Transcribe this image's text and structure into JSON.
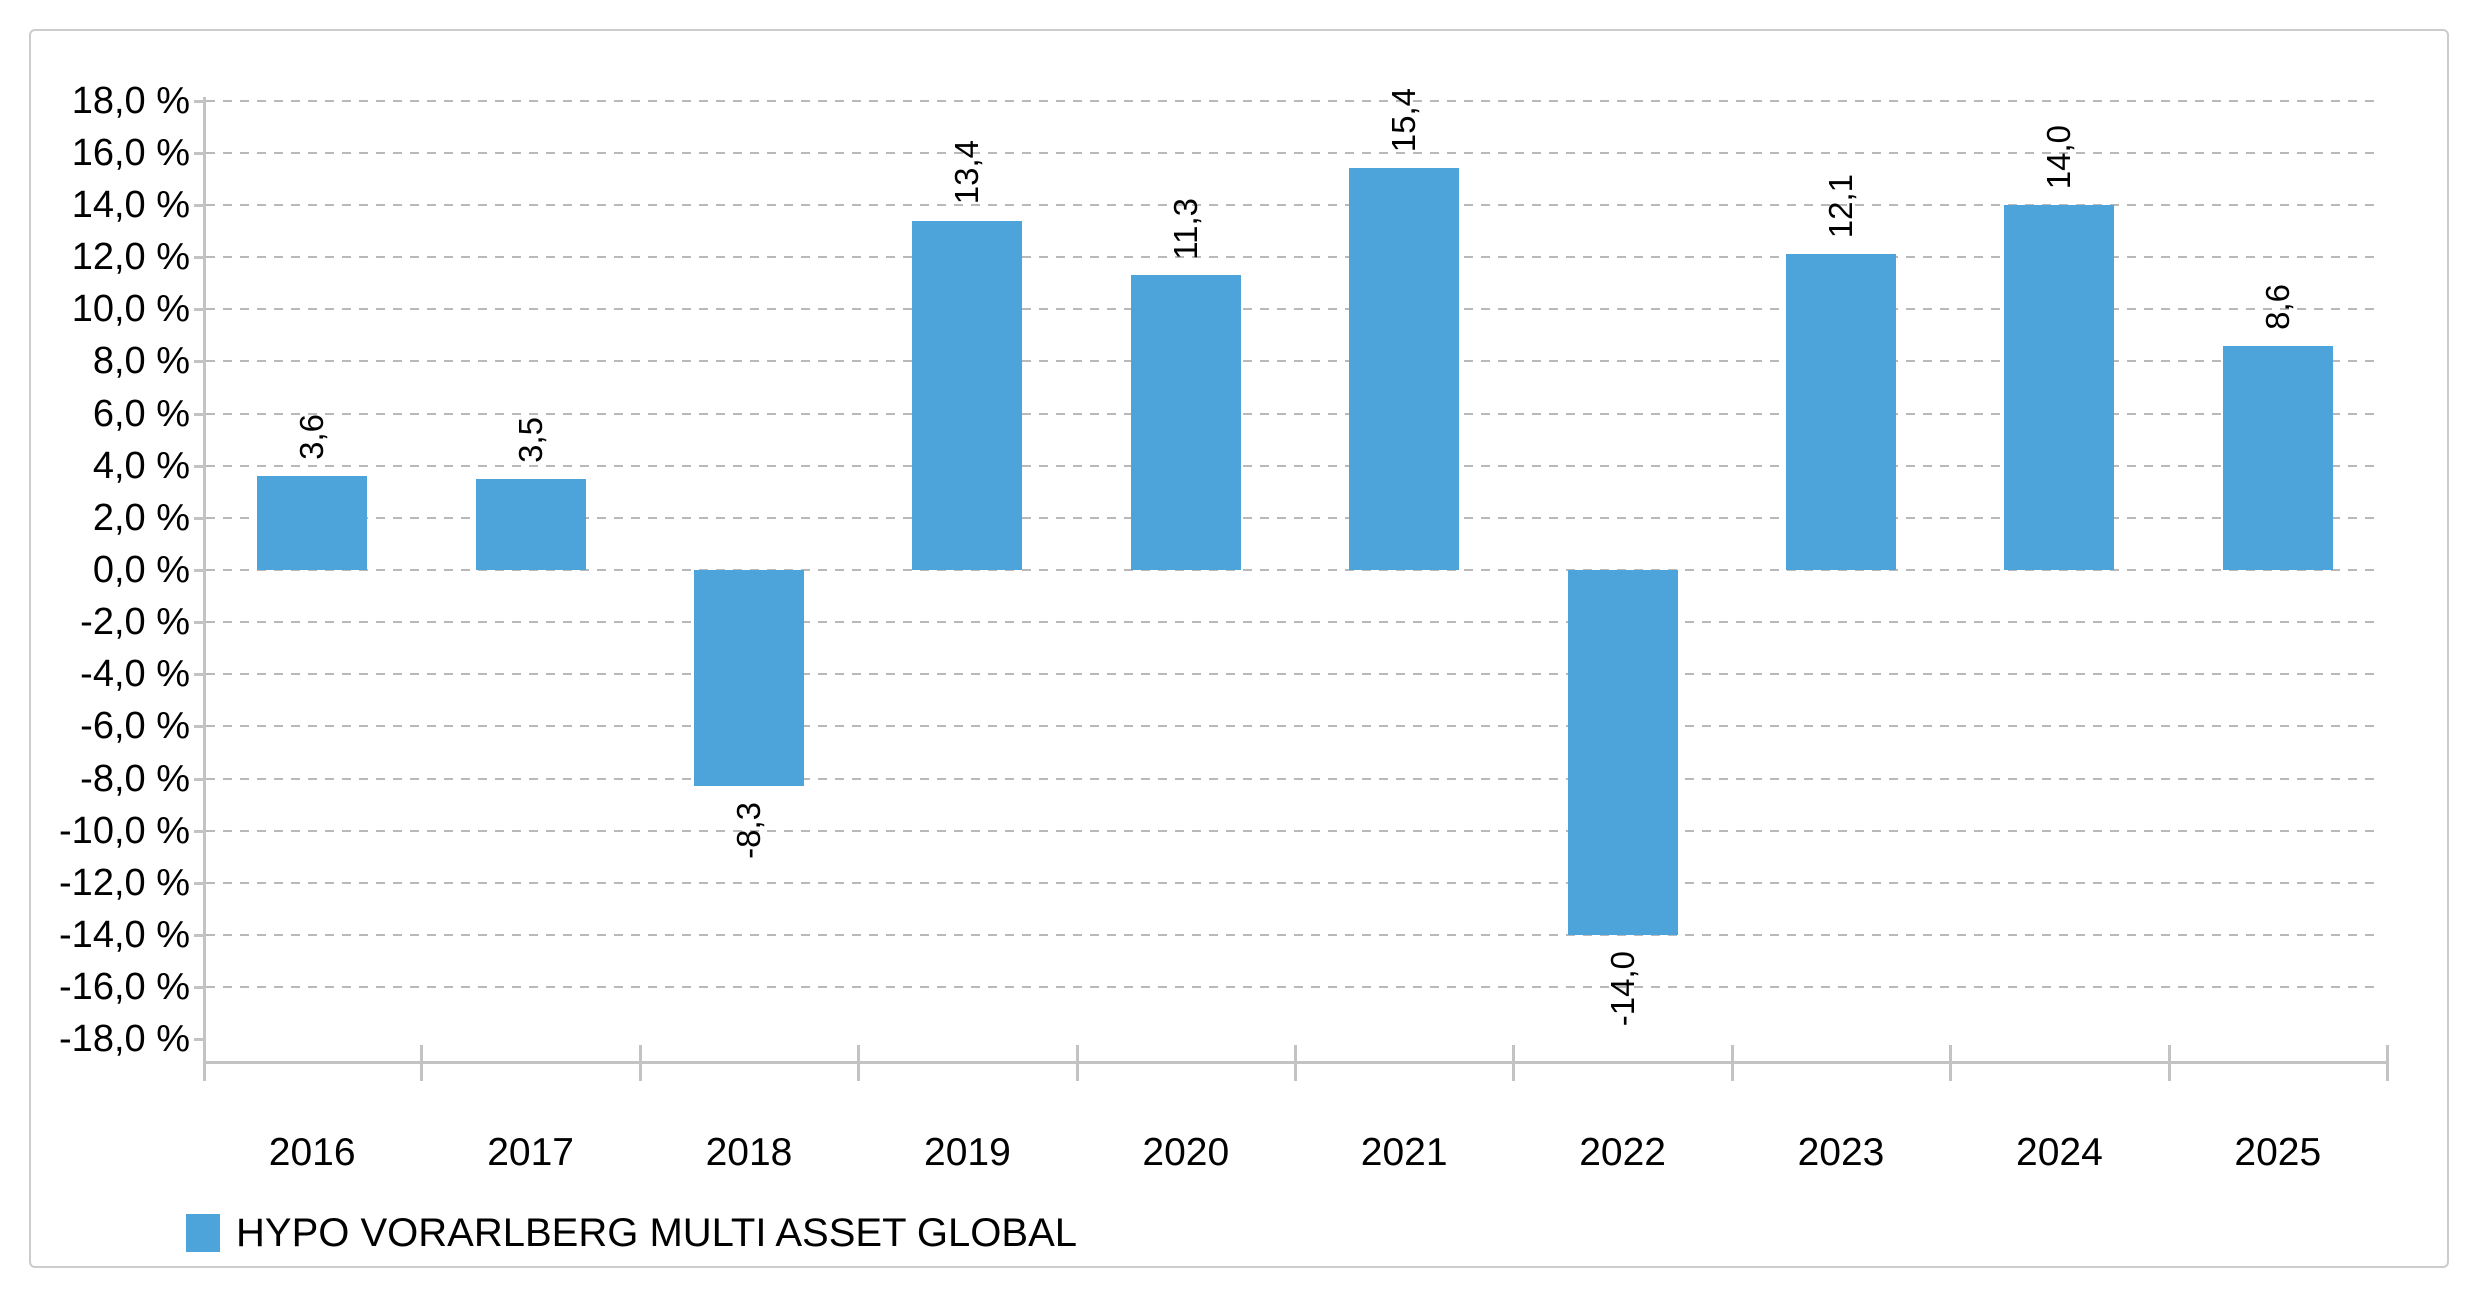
{
  "chart_data": {
    "type": "bar",
    "title": "",
    "xlabel": "",
    "ylabel": "",
    "categories": [
      "2016",
      "2017",
      "2018",
      "2019",
      "2020",
      "2021",
      "2022",
      "2023",
      "2024",
      "2025"
    ],
    "series": [
      {
        "name": "HYPO VORARLBERG MULTI ASSET GLOBAL",
        "values": [
          3.6,
          3.5,
          -8.3,
          13.4,
          11.3,
          15.4,
          -14.0,
          12.1,
          14.0,
          8.6
        ],
        "color": "#4DA4DB"
      }
    ],
    "data_labels": [
      "3,6",
      "3,5",
      "-8,3",
      "13,4",
      "11,3",
      "15,4",
      "-14,0",
      "12,1",
      "14,0",
      "8,6"
    ],
    "y_tick_labels": [
      "18,0 %",
      "16,0 %",
      "14,0 %",
      "12,0 %",
      "10,0 %",
      "8,0 %",
      "6,0 %",
      "4,0 %",
      "2,0 %",
      "0,0 %",
      "-2,0 %",
      "-4,0 %",
      "-6,0 %",
      "-8,0 %",
      "-10,0 %",
      "-12,0 %",
      "-14,0 %",
      "-16,0 %",
      "-18,0 %"
    ],
    "ylim": [
      -18,
      18
    ],
    "y_step": 2,
    "grid": "horizontal-dashed",
    "legend_position": "bottom-left"
  },
  "legend": {
    "label": "HYPO VORARLBERG MULTI ASSET GLOBAL"
  },
  "colors": {
    "bar": "#4DA4DB",
    "grid": "#b9b9b9",
    "axis": "#c3c3c3",
    "text": "#000000",
    "frame_border": "#cccccc",
    "background": "#ffffff"
  }
}
